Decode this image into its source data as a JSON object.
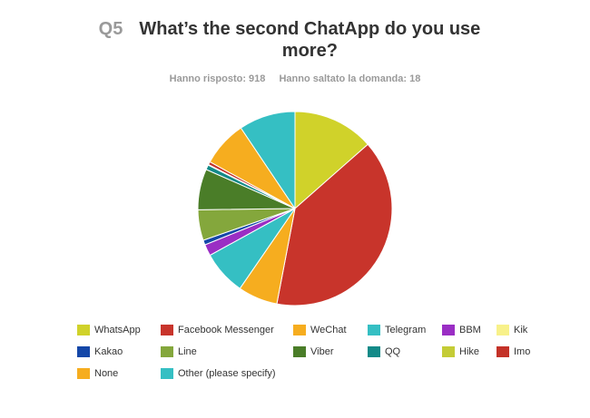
{
  "question": {
    "number": "Q5",
    "text": "What’s the second ChatApp do you use more?"
  },
  "stats": {
    "answered": "Hanno risposto: 918",
    "skipped": "Hanno saltato la domanda: 18"
  },
  "chart_data": {
    "type": "pie",
    "title": "What’s the second ChatApp do you use more?",
    "legend_position": "bottom",
    "slices": [
      {
        "label": "WhatsApp",
        "value": 13.5,
        "color": "#d0d22a"
      },
      {
        "label": "Facebook Messenger",
        "value": 39.5,
        "color": "#c8342b"
      },
      {
        "label": "WeChat",
        "value": 6.6,
        "color": "#f6ad1f"
      },
      {
        "label": "Telegram",
        "value": 7.4,
        "color": "#35bfc3"
      },
      {
        "label": "BBM",
        "value": 1.9,
        "color": "#9a2ec4"
      },
      {
        "label": "Kik",
        "value": 0.0,
        "color": "#f8f18a"
      },
      {
        "label": "Kakao",
        "value": 0.8,
        "color": "#1447a8"
      },
      {
        "label": "Line",
        "value": 5.1,
        "color": "#84a73c"
      },
      {
        "label": "Viber",
        "value": 6.8,
        "color": "#4a7d28"
      },
      {
        "label": "QQ",
        "value": 0.8,
        "color": "#138a88"
      },
      {
        "label": "Hike",
        "value": 0.1,
        "color": "#c4cc36"
      },
      {
        "label": "Imo",
        "value": 0.5,
        "color": "#c43228"
      },
      {
        "label": "None",
        "value": 7.6,
        "color": "#f6ad1f"
      },
      {
        "label": "Other (please specify)",
        "value": 9.4,
        "color": "#35bfc3"
      }
    ]
  }
}
